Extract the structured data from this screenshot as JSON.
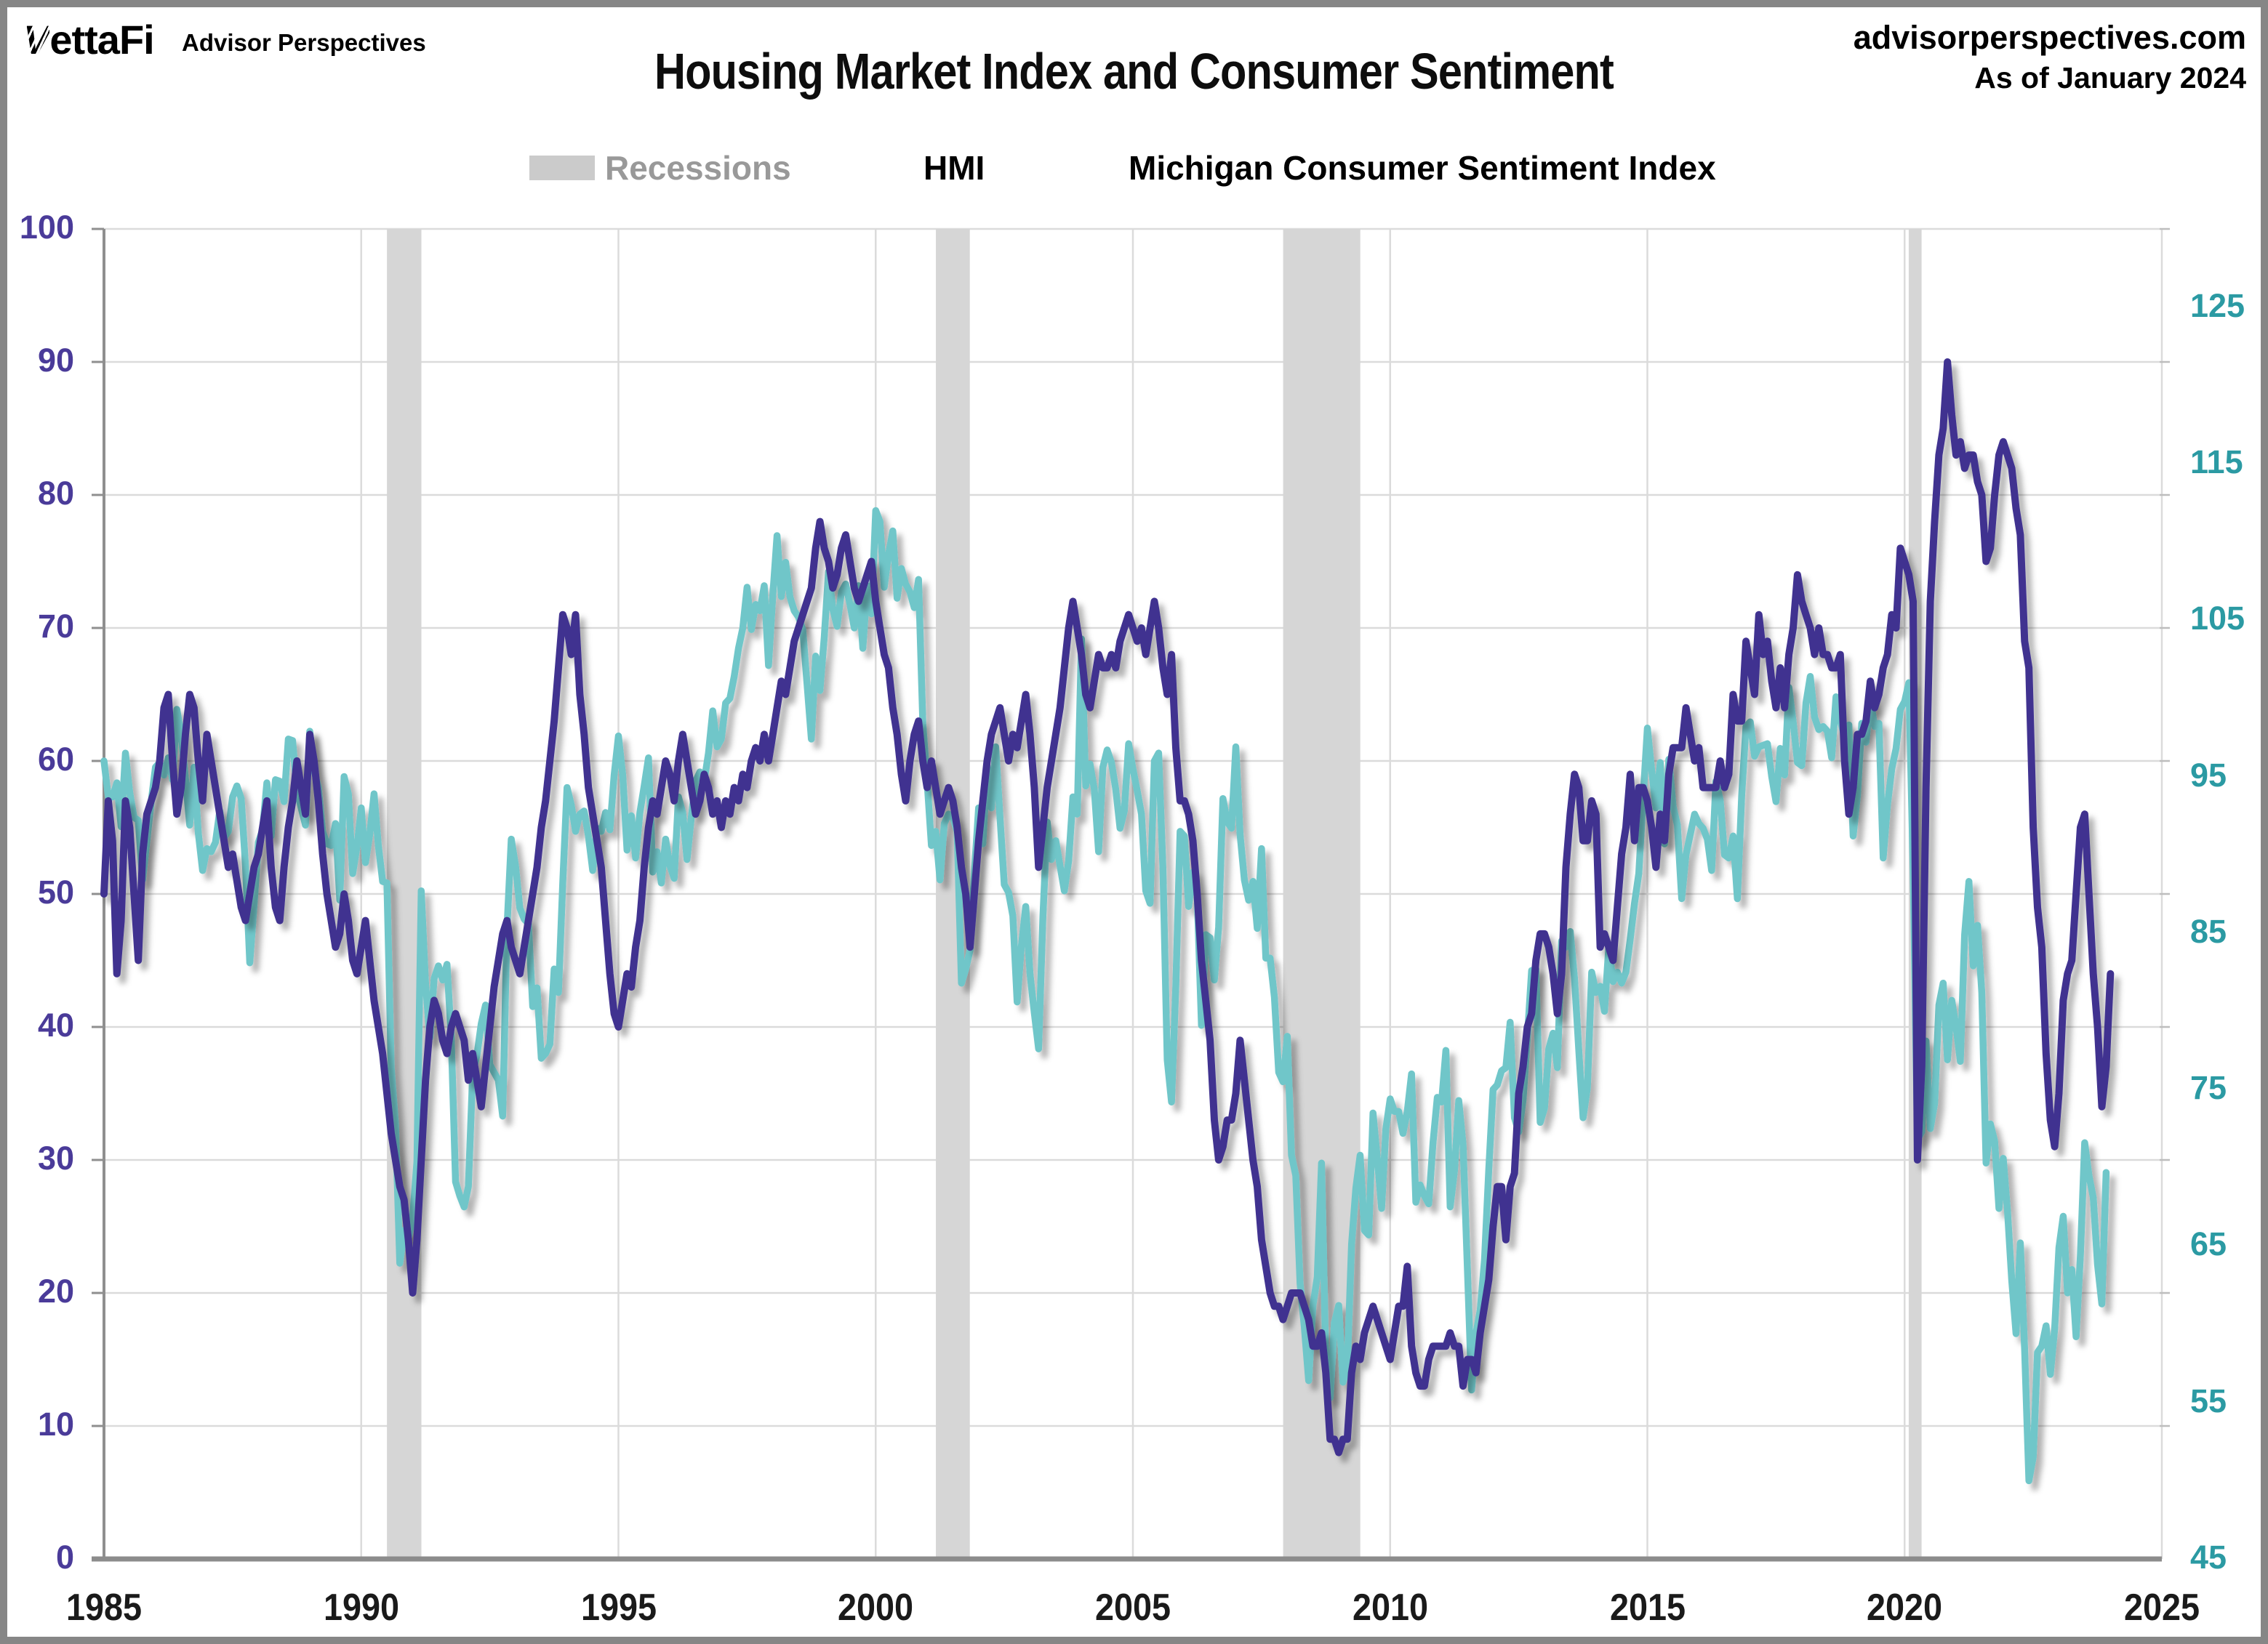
{
  "page": {
    "brand": "VettaFi",
    "brand_sub": "Advisor Perspectives",
    "site": "advisorperspectives.com",
    "as_of": "As of January 2024"
  },
  "chart_data": {
    "type": "line",
    "title": "Housing Market Index and Consumer Sentiment",
    "legend": [
      {
        "label": "Recessions",
        "kind": "band",
        "color": "#cbcbcb",
        "text_color": "#999999"
      },
      {
        "label": "HMI",
        "kind": "line",
        "color": "#413390",
        "text_color": "#453893"
      },
      {
        "label": "Michigan Consumer Sentiment Index",
        "kind": "line",
        "color": "#6fc6c9",
        "text_color": "#1b9aa4"
      }
    ],
    "x_axis": {
      "min": 1985,
      "max": 2025,
      "tick_step": 5,
      "ticks": [
        1985,
        1990,
        1995,
        2000,
        2005,
        2010,
        2015,
        2020,
        2025
      ]
    },
    "left_axis": {
      "min": 0,
      "max": 100,
      "step": 10,
      "color": "#4a3b99",
      "ticks": [
        0,
        10,
        20,
        30,
        40,
        50,
        60,
        70,
        80,
        90,
        100
      ]
    },
    "right_axis": {
      "min": 45,
      "max": 130,
      "step": 10,
      "color": "#2b9aa3",
      "ticks": [
        45,
        55,
        65,
        75,
        85,
        95,
        105,
        115,
        125
      ]
    },
    "grid_color": "#dbdbdb",
    "axis_color": "#8c8c8c",
    "recession_color": "#d6d6d6",
    "recessions": [
      [
        1990.5,
        1991.17
      ],
      [
        2001.17,
        2001.83
      ],
      [
        2007.92,
        2009.42
      ],
      [
        2020.08,
        2020.33
      ]
    ],
    "series": [
      {
        "name": "HMI",
        "axis": "left",
        "color": "#413390",
        "start_year": 1985,
        "start_month": 1,
        "frequency": "monthly",
        "values": [
          50,
          57,
          54,
          44,
          48,
          57,
          55,
          50,
          45,
          53,
          56,
          57,
          58,
          60,
          64,
          65,
          60,
          56,
          58,
          62,
          65,
          64,
          60,
          57,
          62,
          60,
          58,
          56,
          54,
          52,
          53,
          51,
          49,
          48,
          50,
          52,
          53,
          55,
          57,
          52,
          49,
          48,
          52,
          55,
          57,
          60,
          58,
          56,
          62,
          60,
          57,
          53,
          50,
          48,
          46,
          47,
          50,
          48,
          45,
          44,
          46,
          48,
          45,
          42,
          40,
          38,
          35,
          32,
          30,
          28,
          27,
          24,
          20,
          24,
          30,
          36,
          40,
          42,
          41,
          39,
          38,
          40,
          41,
          40,
          39,
          36,
          38,
          36,
          34,
          37,
          40,
          43,
          45,
          47,
          48,
          46,
          45,
          44,
          46,
          48,
          50,
          52,
          55,
          57,
          60,
          63,
          67,
          71,
          70,
          68,
          71,
          65,
          62,
          58,
          56,
          54,
          52,
          48,
          44,
          41,
          40,
          42,
          44,
          43,
          46,
          48,
          52,
          55,
          57,
          56,
          58,
          60,
          59,
          57,
          60,
          62,
          60,
          58,
          56,
          57,
          59,
          58,
          56,
          57,
          55,
          57,
          56,
          58,
          57,
          59,
          58,
          60,
          61,
          60,
          62,
          60,
          62,
          64,
          66,
          65,
          67,
          69,
          70,
          71,
          72,
          73,
          76,
          78,
          76,
          75,
          73,
          74,
          76,
          77,
          75,
          73,
          72,
          73,
          74,
          75,
          72,
          70,
          68,
          67,
          64,
          62,
          59,
          57,
          60,
          62,
          63,
          60,
          58,
          60,
          58,
          56,
          57,
          58,
          57,
          55,
          52,
          50,
          46,
          50,
          54,
          57,
          60,
          62,
          63,
          64,
          62,
          60,
          62,
          61,
          63,
          65,
          62,
          58,
          52,
          55,
          58,
          60,
          62,
          64,
          67,
          70,
          72,
          70,
          68,
          65,
          64,
          66,
          68,
          67,
          67,
          68,
          67,
          69,
          70,
          71,
          70,
          69,
          70,
          68,
          70,
          72,
          70,
          67,
          65,
          68,
          61,
          57,
          57,
          56,
          54,
          50,
          45,
          42,
          39,
          33,
          30,
          31,
          33,
          33,
          35,
          39,
          36,
          33,
          30,
          28,
          24,
          22,
          20,
          19,
          19,
          18,
          19,
          20,
          20,
          20,
          19,
          18,
          16,
          16,
          17,
          14,
          9,
          9,
          8,
          9,
          9,
          14,
          16,
          15,
          17,
          18,
          19,
          18,
          17,
          16,
          15,
          17,
          19,
          19,
          22,
          16,
          14,
          13,
          13,
          15,
          16,
          16,
          16,
          16,
          17,
          16,
          16,
          13,
          15,
          15,
          14,
          17,
          19,
          21,
          25,
          28,
          28,
          24,
          28,
          29,
          35,
          37,
          40,
          41,
          45,
          47,
          47,
          46,
          44,
          41,
          44,
          52,
          56,
          59,
          58,
          54,
          54,
          57,
          56,
          46,
          47,
          46,
          45,
          49,
          53,
          55,
          59,
          54,
          58,
          58,
          57,
          55,
          52,
          56,
          54,
          59,
          61,
          61,
          61,
          64,
          62,
          60,
          61,
          58,
          58,
          58,
          58,
          60,
          58,
          59,
          65,
          63,
          63,
          69,
          67,
          65,
          71,
          68,
          69,
          66,
          64,
          67,
          64,
          68,
          70,
          74,
          72,
          71,
          70,
          68,
          70,
          68,
          68,
          67,
          67,
          68,
          60,
          56,
          58,
          62,
          62,
          63,
          66,
          64,
          65,
          67,
          68,
          71,
          70,
          76,
          75,
          74,
          72,
          30,
          37,
          58,
          72,
          78,
          83,
          85,
          90,
          86,
          83,
          84,
          82,
          83,
          83,
          81,
          80,
          75,
          76,
          80,
          83,
          84,
          83,
          82,
          79,
          77,
          69,
          67,
          55,
          49,
          46,
          38,
          33,
          31,
          35,
          42,
          44,
          45,
          50,
          55,
          56,
          50,
          44,
          40,
          34,
          37,
          44
        ]
      },
      {
        "name": "Michigan Consumer Sentiment Index",
        "axis": "right",
        "color": "#6fc6c9",
        "start_year": 1985,
        "start_month": 1,
        "frequency": "monthly",
        "values": [
          96.0,
          93.7,
          93.7,
          94.6,
          91.8,
          96.5,
          94.0,
          92.4,
          92.2,
          88.4,
          90.9,
          93.4,
          95.6,
          95.9,
          95.1,
          96.2,
          94.8,
          99.3,
          97.7,
          94.9,
          91.9,
          95.6,
          91.4,
          89.0,
          90.4,
          90.2,
          90.8,
          92.8,
          91.1,
          91.5,
          93.7,
          94.4,
          93.6,
          89.3,
          83.1,
          86.8,
          90.8,
          91.6,
          94.6,
          91.2,
          94.8,
          94.7,
          93.4,
          97.4,
          97.3,
          94.1,
          93.0,
          91.9,
          97.9,
          95.4,
          94.3,
          91.5,
          90.7,
          90.6,
          92.0,
          87.1,
          95.0,
          93.9,
          88.8,
          90.5,
          93.0,
          89.5,
          91.3,
          93.9,
          90.6,
          88.3,
          88.2,
          76.4,
          72.8,
          63.9,
          66.0,
          65.5,
          66.8,
          70.4,
          87.7,
          81.8,
          78.3,
          82.1,
          82.9,
          82.0,
          83.0,
          78.3,
          69.1,
          68.2,
          67.5,
          68.8,
          76.0,
          77.2,
          79.2,
          80.4,
          76.6,
          76.1,
          75.6,
          73.3,
          85.3,
          91.0,
          89.3,
          86.6,
          85.9,
          85.6,
          80.3,
          81.5,
          77.0,
          77.3,
          77.9,
          82.7,
          81.2,
          88.2,
          94.3,
          93.2,
          91.5,
          92.6,
          92.8,
          91.2,
          89.0,
          91.7,
          91.5,
          92.7,
          91.6,
          95.1,
          97.6,
          95.1,
          90.3,
          92.5,
          89.8,
          92.7,
          94.4,
          96.2,
          88.9,
          90.2,
          88.2,
          91.0,
          89.3,
          88.5,
          93.7,
          92.7,
          89.7,
          92.4,
          94.7,
          95.3,
          94.7,
          96.5,
          99.2,
          96.9,
          97.4,
          99.7,
          100.0,
          101.4,
          103.2,
          104.5,
          107.1,
          104.4,
          106.0,
          105.6,
          107.2,
          102.1,
          106.6,
          110.4,
          106.5,
          108.7,
          106.5,
          105.6,
          105.2,
          104.4,
          100.9,
          97.4,
          102.7,
          100.5,
          103.9,
          108.1,
          105.7,
          104.6,
          106.8,
          107.3,
          106.0,
          104.5,
          107.2,
          103.2,
          107.2,
          105.4,
          112.0,
          111.3,
          107.1,
          109.2,
          110.7,
          106.4,
          108.3,
          107.3,
          106.8,
          105.8,
          107.6,
          98.4,
          94.7,
          90.6,
          91.5,
          88.4,
          92.0,
          92.6,
          92.4,
          91.5,
          81.8,
          82.7,
          83.9,
          88.8,
          93.0,
          90.7,
          95.7,
          93.0,
          96.9,
          92.4,
          88.1,
          87.6,
          86.1,
          80.6,
          84.2,
          86.7,
          82.4,
          79.9,
          77.6,
          86.0,
          92.1,
          89.7,
          90.9,
          89.3,
          87.7,
          89.6,
          93.7,
          92.6,
          103.8,
          94.4,
          95.8,
          94.2,
          90.2,
          95.6,
          96.7,
          95.9,
          94.2,
          91.7,
          92.8,
          97.1,
          95.5,
          94.1,
          92.6,
          87.7,
          86.9,
          96.0,
          96.5,
          89.1,
          76.9,
          74.2,
          81.6,
          91.5,
          91.2,
          86.7,
          88.9,
          87.4,
          79.1,
          84.9,
          84.7,
          82.0,
          85.4,
          93.6,
          92.1,
          91.7,
          96.9,
          91.3,
          88.4,
          87.1,
          88.3,
          85.3,
          90.4,
          83.4,
          83.4,
          80.9,
          76.1,
          75.5,
          78.4,
          70.8,
          69.5,
          62.6,
          59.8,
          56.4,
          61.2,
          63.0,
          70.3,
          57.6,
          55.3,
          60.1,
          61.2,
          56.3,
          57.3,
          65.1,
          68.7,
          70.8,
          66.0,
          65.7,
          73.5,
          70.6,
          67.4,
          72.5,
          74.4,
          73.6,
          73.6,
          72.2,
          73.6,
          76.0,
          67.8,
          68.9,
          68.2,
          67.7,
          71.6,
          74.5,
          74.2,
          77.5,
          67.5,
          69.8,
          74.3,
          71.5,
          63.7,
          55.8,
          59.4,
          60.9,
          64.1,
          69.9,
          75.0,
          75.3,
          76.2,
          76.4,
          79.3,
          73.2,
          72.3,
          74.3,
          78.3,
          82.6,
          82.7,
          72.9,
          73.8,
          77.6,
          78.6,
          76.4,
          84.5,
          84.1,
          85.1,
          82.1,
          77.5,
          73.2,
          75.1,
          82.5,
          81.2,
          81.6,
          80.0,
          84.1,
          81.9,
          82.5,
          81.8,
          82.5,
          84.6,
          86.9,
          88.8,
          93.6,
          98.1,
          95.4,
          93.0,
          95.9,
          90.7,
          96.1,
          93.1,
          91.9,
          87.2,
          90.0,
          91.3,
          92.6,
          92.0,
          91.7,
          91.0,
          89.0,
          94.7,
          93.5,
          90.0,
          89.8,
          91.2,
          87.2,
          93.8,
          98.2,
          98.5,
          96.3,
          96.9,
          97.0,
          97.1,
          95.0,
          93.4,
          96.8,
          95.1,
          100.7,
          98.5,
          95.9,
          95.7,
          99.7,
          101.4,
          98.8,
          98.0,
          98.2,
          97.9,
          96.2,
          100.1,
          98.6,
          97.5,
          98.3,
          91.2,
          93.8,
          98.4,
          97.2,
          100.0,
          98.2,
          98.4,
          89.8,
          93.2,
          95.5,
          96.8,
          99.3,
          99.8,
          101.0,
          89.1,
          71.8,
          72.3,
          78.1,
          72.5,
          74.1,
          80.4,
          81.8,
          76.9,
          80.7,
          79.0,
          76.8,
          84.9,
          88.3,
          82.9,
          85.5,
          81.2,
          70.3,
          72.8,
          71.7,
          67.4,
          70.6,
          67.2,
          62.8,
          59.4,
          65.2,
          58.4,
          50.0,
          51.5,
          58.2,
          58.6,
          59.9,
          56.8,
          59.7,
          64.9,
          66.9,
          62.0,
          63.5,
          59.2,
          64.4,
          71.6,
          69.5,
          68.1,
          63.8,
          61.3,
          69.7
        ]
      }
    ]
  }
}
